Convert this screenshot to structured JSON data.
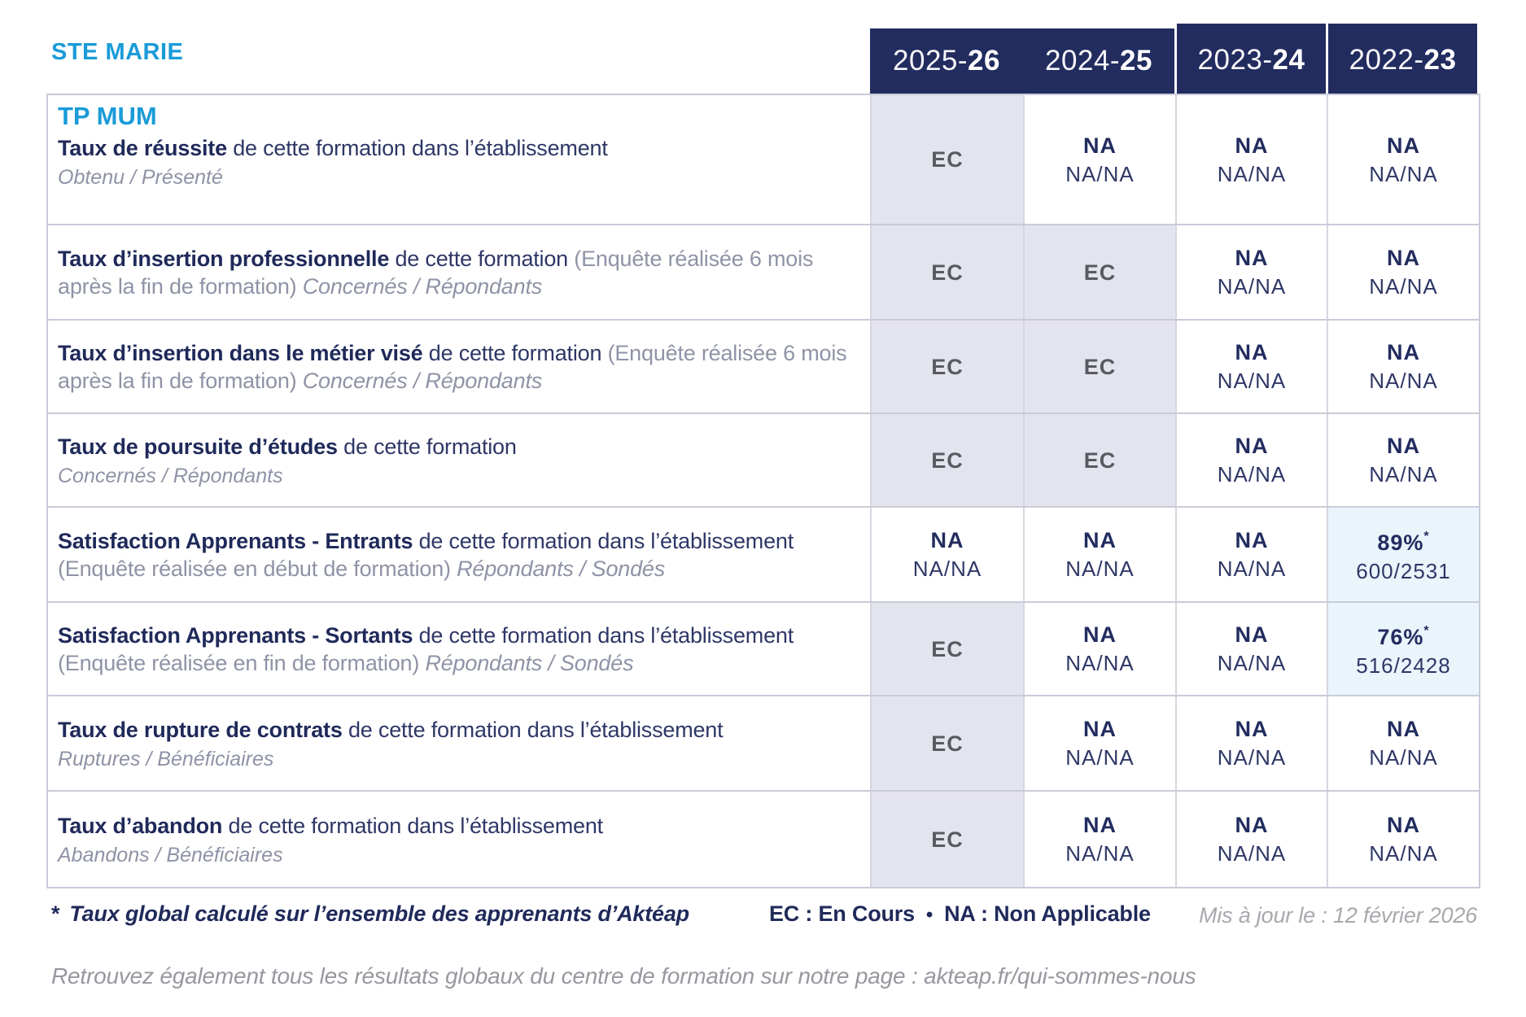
{
  "colors": {
    "accent_blue": "#1a9bd8",
    "header_navy": "#222c5f",
    "ec_cell_bg": "#e4e4ee",
    "highlight_cell_bg": "#eaf4fb",
    "border": "#c9cbd9"
  },
  "brand": "STE MARIE",
  "header": {
    "years": [
      {
        "prefix": "2025-",
        "suffix": "26"
      },
      {
        "prefix": "2024-",
        "suffix": "25"
      },
      {
        "prefix": "2023-",
        "suffix": "24"
      },
      {
        "prefix": "2022-",
        "suffix": "23"
      }
    ]
  },
  "table": {
    "rows": [
      {
        "program": "TP MUM",
        "title": "Taux de réussite",
        "desc": "de cette formation dans l’établissement",
        "paren": "",
        "tail": "",
        "below": "Obtenu / Présenté",
        "cells": [
          {
            "type": "ec",
            "main": "EC"
          },
          {
            "type": "na",
            "main": "NA",
            "sub": "NA/NA"
          },
          {
            "type": "na",
            "main": "NA",
            "sub": "NA/NA"
          },
          {
            "type": "na",
            "main": "NA",
            "sub": "NA/NA"
          }
        ]
      },
      {
        "title": "Taux d’insertion professionnelle",
        "desc": "de cette formation",
        "paren": "(Enquête réalisée 6 mois après la fin de formation)",
        "tail": "Concernés / Répondants",
        "below": "",
        "cells": [
          {
            "type": "ec",
            "main": "EC"
          },
          {
            "type": "ec",
            "main": "EC"
          },
          {
            "type": "na",
            "main": "NA",
            "sub": "NA/NA"
          },
          {
            "type": "na",
            "main": "NA",
            "sub": "NA/NA"
          }
        ]
      },
      {
        "title": "Taux d’insertion dans le métier visé",
        "desc": "de cette formation",
        "paren": "(Enquête réalisée 6 mois après la fin de formation)",
        "tail": "Concernés / Répondants",
        "below": "",
        "cells": [
          {
            "type": "ec",
            "main": "EC"
          },
          {
            "type": "ec",
            "main": "EC"
          },
          {
            "type": "na",
            "main": "NA",
            "sub": "NA/NA"
          },
          {
            "type": "na",
            "main": "NA",
            "sub": "NA/NA"
          }
        ]
      },
      {
        "title": "Taux de poursuite d’études",
        "desc": "de cette formation",
        "paren": "",
        "tail": "",
        "below": "Concernés / Répondants",
        "cells": [
          {
            "type": "ec",
            "main": "EC"
          },
          {
            "type": "ec",
            "main": "EC"
          },
          {
            "type": "na",
            "main": "NA",
            "sub": "NA/NA"
          },
          {
            "type": "na",
            "main": "NA",
            "sub": "NA/NA"
          }
        ]
      },
      {
        "title": "Satisfaction Apprenants - Entrants",
        "desc": "de cette formation dans l’établissement",
        "paren": "(Enquête réalisée en début de formation)",
        "tail": "Répondants / Sondés",
        "below": "",
        "cells": [
          {
            "type": "na",
            "main": "NA",
            "sub": "NA/NA"
          },
          {
            "type": "na",
            "main": "NA",
            "sub": "NA/NA"
          },
          {
            "type": "na",
            "main": "NA",
            "sub": "NA/NA"
          },
          {
            "type": "pct",
            "main": "89%",
            "star": "*",
            "sub": "600/2531"
          }
        ]
      },
      {
        "title": "Satisfaction Apprenants - Sortants",
        "desc": "de cette formation dans l’établissement",
        "paren": "(Enquête réalisée en fin de formation)",
        "tail": "Répondants / Sondés",
        "below": "",
        "cells": [
          {
            "type": "ec",
            "main": "EC"
          },
          {
            "type": "na",
            "main": "NA",
            "sub": "NA/NA"
          },
          {
            "type": "na",
            "main": "NA",
            "sub": "NA/NA"
          },
          {
            "type": "pct",
            "main": "76%",
            "star": "*",
            "sub": "516/2428"
          }
        ]
      },
      {
        "title": "Taux de rupture de contrats",
        "desc": "de cette formation dans l’établissement",
        "paren": "",
        "tail": "",
        "below": "Ruptures / Bénéficiaires",
        "cells": [
          {
            "type": "ec",
            "main": "EC"
          },
          {
            "type": "na",
            "main": "NA",
            "sub": "NA/NA"
          },
          {
            "type": "na",
            "main": "NA",
            "sub": "NA/NA"
          },
          {
            "type": "na",
            "main": "NA",
            "sub": "NA/NA"
          }
        ]
      },
      {
        "title": "Taux d’abandon",
        "desc": "de cette formation dans l’établissement",
        "paren": "",
        "tail": "",
        "below": "Abandons / Bénéficiaires",
        "cells": [
          {
            "type": "ec",
            "main": "EC"
          },
          {
            "type": "na",
            "main": "NA",
            "sub": "NA/NA"
          },
          {
            "type": "na",
            "main": "NA",
            "sub": "NA/NA"
          },
          {
            "type": "na",
            "main": "NA",
            "sub": "NA/NA"
          }
        ]
      }
    ]
  },
  "footer": {
    "star": "*",
    "footnote": "Taux global calculé sur l’ensemble des apprenants d’Aktéap",
    "legend_ec": "EC : En Cours",
    "legend_sep": "•",
    "legend_na": "NA : Non Applicable",
    "updated": "Mis à jour le : 12 février 2026",
    "link_prefix": "Retrouvez également tous les résultats globaux du centre de formation sur notre page : ",
    "link_url": "akteap.fr/qui-sommes-nous"
  }
}
